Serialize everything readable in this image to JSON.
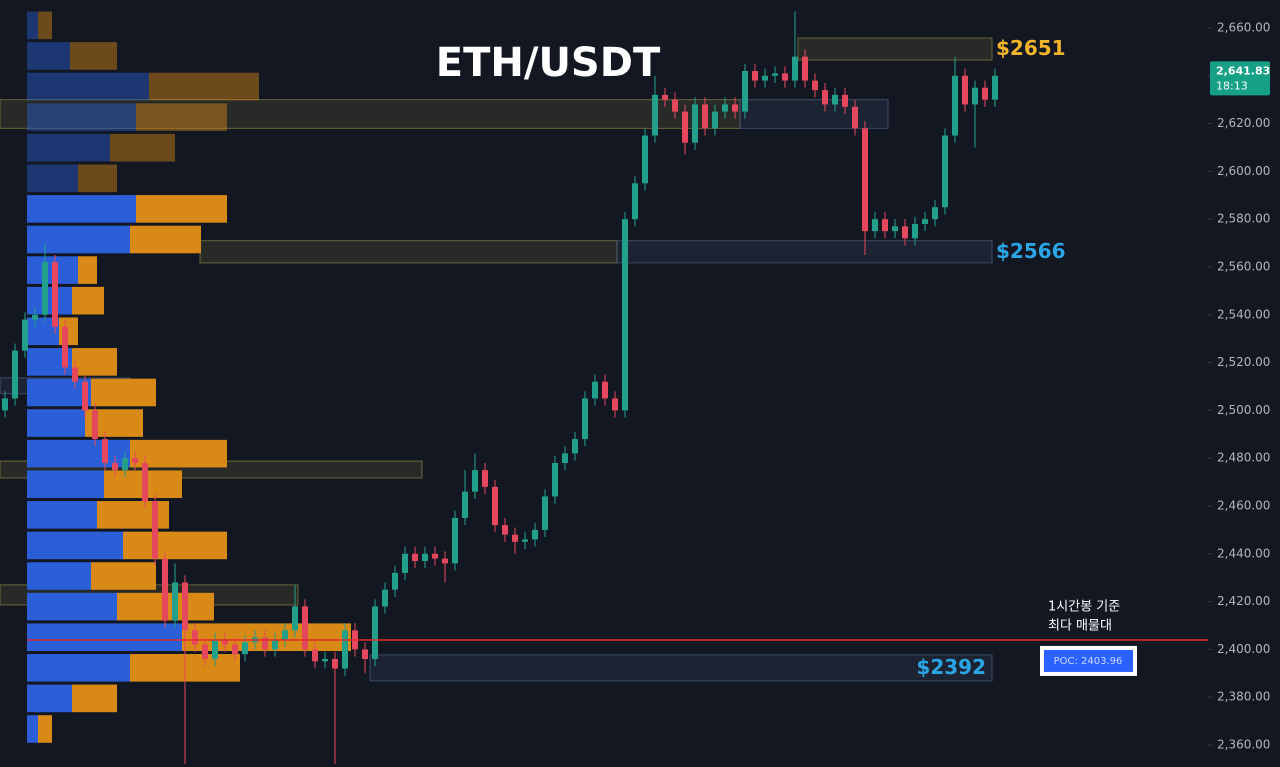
{
  "chart_data": {
    "type": "candlestick",
    "title": "ETH/USDT",
    "ylim": [
      2350.8,
      2671.7
    ],
    "yticks": [
      {
        "value": 2360,
        "label": "2,360.00"
      },
      {
        "value": 2380,
        "label": "2,380.00"
      },
      {
        "value": 2400,
        "label": "2,400.00"
      },
      {
        "value": 2420,
        "label": "2,420.00"
      },
      {
        "value": 2440,
        "label": "2,440.00"
      },
      {
        "value": 2460,
        "label": "2,460.00"
      },
      {
        "value": 2480,
        "label": "2,480.00"
      },
      {
        "value": 2500,
        "label": "2,500.00"
      },
      {
        "value": 2520,
        "label": "2,520.00"
      },
      {
        "value": 2540,
        "label": "2,540.00"
      },
      {
        "value": 2560,
        "label": "2,560.00"
      },
      {
        "value": 2580,
        "label": "2,580.00"
      },
      {
        "value": 2600,
        "label": "2,600.00"
      },
      {
        "value": 2620,
        "label": "2,620.00"
      },
      {
        "value": 2640,
        "label": "2,640.00"
      },
      {
        "value": 2660,
        "label": "2,660.00"
      }
    ],
    "up_color": "#22a08c",
    "down_color": "#e5485c",
    "open": [
      2500,
      2505,
      2525,
      2538,
      2540,
      2562,
      2535,
      2518,
      2512,
      2500,
      2488,
      2478,
      2475,
      2480,
      2478,
      2462,
      2438,
      2412,
      2428,
      2408,
      2402,
      2396,
      2404,
      2402,
      2398,
      2403,
      2405,
      2400,
      2404,
      2408,
      2418,
      2400,
      2395,
      2396,
      2392,
      2408,
      2400,
      2396,
      2418,
      2425,
      2432,
      2440,
      2437,
      2440,
      2438,
      2436,
      2455,
      2466,
      2475,
      2468,
      2452,
      2448,
      2445,
      2446,
      2450,
      2464,
      2478,
      2482,
      2488,
      2505,
      2512,
      2505,
      2500,
      2580,
      2595,
      2615,
      2632,
      2630,
      2625,
      2612,
      2628,
      2618,
      2625,
      2628,
      2625,
      2642,
      2638,
      2640,
      2641,
      2638,
      2648,
      2638,
      2634,
      2628,
      2632,
      2627,
      2618,
      2575,
      2580,
      2575,
      2577,
      2572,
      2578,
      2580,
      2585,
      2615,
      2640,
      2628,
      2635,
      2630
    ],
    "high": [
      2508,
      2528,
      2541,
      2543,
      2570,
      2565,
      2538,
      2521,
      2515,
      2503,
      2491,
      2481,
      2483,
      2483,
      2481,
      2465,
      2441,
      2436,
      2431,
      2411,
      2405,
      2407,
      2407,
      2405,
      2406,
      2408,
      2408,
      2407,
      2411,
      2427,
      2421,
      2403,
      2399,
      2399,
      2411,
      2411,
      2403,
      2421,
      2428,
      2435,
      2443,
      2443,
      2443,
      2443,
      2441,
      2458,
      2475,
      2482,
      2478,
      2471,
      2455,
      2451,
      2449,
      2453,
      2467,
      2481,
      2485,
      2491,
      2508,
      2515,
      2515,
      2508,
      2583,
      2598,
      2618,
      2640,
      2635,
      2633,
      2628,
      2631,
      2631,
      2628,
      2631,
      2631,
      2645,
      2645,
      2643,
      2644,
      2644,
      2667,
      2651,
      2641,
      2637,
      2635,
      2635,
      2630,
      2621,
      2583,
      2583,
      2580,
      2580,
      2581,
      2583,
      2588,
      2618,
      2648,
      2643,
      2638,
      2638,
      2643
    ],
    "low": [
      2497,
      2502,
      2522,
      2535,
      2537,
      2532,
      2515,
      2509,
      2497,
      2485,
      2475,
      2472,
      2472,
      2475,
      2459,
      2435,
      2409,
      2409,
      2352,
      2399,
      2393,
      2393,
      2399,
      2395,
      2395,
      2400,
      2397,
      2397,
      2401,
      2405,
      2397,
      2392,
      2392,
      2352,
      2389,
      2397,
      2390,
      2393,
      2415,
      2422,
      2429,
      2434,
      2434,
      2435,
      2428,
      2433,
      2452,
      2463,
      2465,
      2449,
      2445,
      2440,
      2442,
      2443,
      2447,
      2461,
      2475,
      2479,
      2485,
      2502,
      2502,
      2497,
      2497,
      2577,
      2592,
      2612,
      2627,
      2622,
      2607,
      2609,
      2615,
      2615,
      2622,
      2622,
      2622,
      2635,
      2635,
      2637,
      2635,
      2635,
      2635,
      2631,
      2625,
      2625,
      2624,
      2615,
      2565,
      2572,
      2572,
      2572,
      2569,
      2569,
      2575,
      2577,
      2582,
      2612,
      2625,
      2610,
      2627,
      2627
    ],
    "close": [
      2505,
      2525,
      2538,
      2540,
      2562,
      2535,
      2518,
      2512,
      2500,
      2488,
      2478,
      2475,
      2480,
      2478,
      2462,
      2438,
      2412,
      2428,
      2408,
      2402,
      2396,
      2404,
      2402,
      2398,
      2403,
      2405,
      2400,
      2404,
      2408,
      2418,
      2400,
      2395,
      2396,
      2392,
      2408,
      2400,
      2396,
      2418,
      2425,
      2432,
      2440,
      2437,
      2440,
      2438,
      2436,
      2455,
      2466,
      2475,
      2468,
      2452,
      2448,
      2445,
      2446,
      2450,
      2464,
      2478,
      2482,
      2488,
      2505,
      2512,
      2505,
      2500,
      2580,
      2595,
      2615,
      2632,
      2630,
      2625,
      2612,
      2628,
      2618,
      2625,
      2628,
      2625,
      2642,
      2638,
      2640,
      2641,
      2638,
      2648,
      2638,
      2634,
      2628,
      2632,
      2627,
      2618,
      2575,
      2580,
      2575,
      2577,
      2572,
      2578,
      2580,
      2585,
      2615,
      2640,
      2628,
      2635,
      2630,
      2640
    ],
    "profile": {
      "bins": [
        2667.5,
        2654.7,
        2641.9,
        2629.1,
        2616.3,
        2603.5,
        2590.7,
        2577.9,
        2565.1,
        2552.3,
        2539.5,
        2526.7,
        2513.9,
        2501.1,
        2488.3,
        2475.5,
        2462.7,
        2449.9,
        2437.1,
        2424.3,
        2411.5,
        2398.7,
        2385.9,
        2373.1,
        2360.3
      ],
      "buy": [
        11,
        43,
        122,
        109,
        83,
        51,
        109,
        103,
        51,
        45,
        32,
        45,
        64,
        58,
        103,
        77,
        70,
        96,
        64,
        90,
        155,
        103,
        45,
        11
      ],
      "sell": [
        14,
        47,
        110,
        91,
        65,
        39,
        91,
        71,
        19,
        32,
        19,
        45,
        65,
        58,
        97,
        78,
        72,
        104,
        65,
        97,
        169,
        110,
        45,
        14
      ],
      "buy_color": "#2a5fd8",
      "sell_color": "#d98a16",
      "value_area": [
        2360.3,
        2590.7
      ]
    },
    "zones": [
      {
        "top": 2655.8,
        "bottom": 2646.6,
        "color": "#8a8440",
        "value": 2651,
        "label": "$2651",
        "label_color": "#f2b428"
      },
      {
        "top": 2630,
        "bottom": 2618,
        "color": "#8a8440"
      },
      {
        "top": 2630,
        "bottom": 2618,
        "color": "#4a6080"
      },
      {
        "top": 2571,
        "bottom": 2561.7,
        "color": "#8a8440"
      },
      {
        "top": 2571,
        "bottom": 2561.7,
        "color": "#4a6080",
        "value": 2566,
        "label": "$2566",
        "label_color": "#2aa6e6"
      },
      {
        "top": 2513.6,
        "bottom": 2507,
        "color": "#4a6080"
      },
      {
        "top": 2478.8,
        "bottom": 2471.7,
        "color": "#8a8440"
      },
      {
        "top": 2427,
        "bottom": 2418.6,
        "color": "#8a8440"
      },
      {
        "top": 2397.7,
        "bottom": 2386.8,
        "color": "#4a6080",
        "value": 2392,
        "label": "$2392",
        "label_color": "#2aa6e6"
      }
    ],
    "poc": {
      "value": 2403.96,
      "label": "POC: 2403.96",
      "color": "#e52a2a"
    },
    "annotation": [
      "1시간봉 기준",
      "최다 매물대"
    ],
    "last_price": {
      "value": 2641.83,
      "label": "2,641.83",
      "countdown": "18:13",
      "color": "#16a085"
    }
  }
}
